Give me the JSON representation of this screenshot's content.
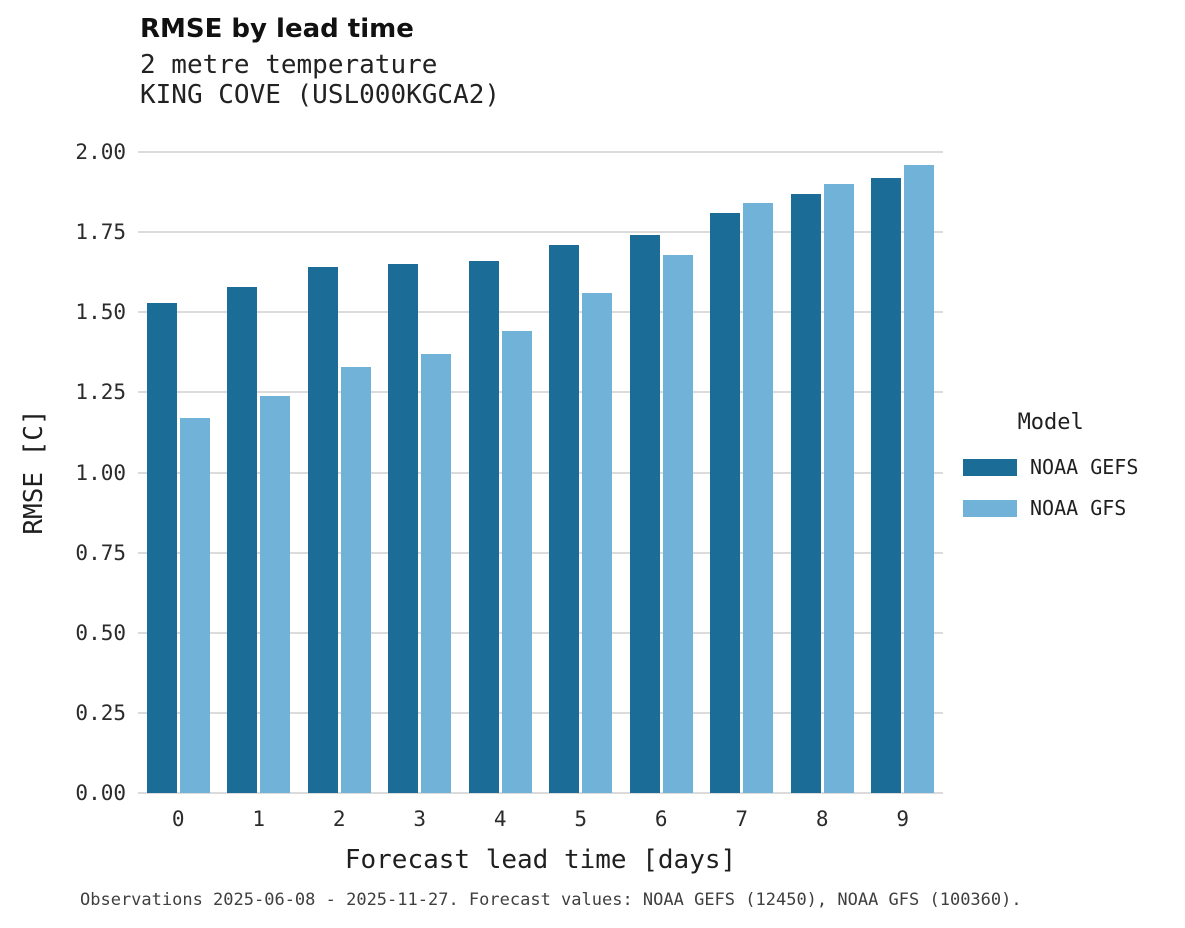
{
  "title": "RMSE by lead time",
  "subtitle_line1": "2 metre temperature",
  "subtitle_line2": "KING COVE (USL000KGCA2)",
  "caption": "Observations 2025-06-08 - 2025-11-27. Forecast values: NOAA GEFS (12450), NOAA GFS (100360).",
  "legend": {
    "title": "Model",
    "entries": [
      {
        "label": "NOAA GEFS",
        "color": "#1b6d98"
      },
      {
        "label": "NOAA GFS",
        "color": "#71b2d8"
      }
    ]
  },
  "chart_data": {
    "type": "bar",
    "title": "RMSE by lead time",
    "subtitle": [
      "2 metre temperature",
      "KING COVE (USL000KGCA2)"
    ],
    "xlabel": "Forecast lead time [days]",
    "ylabel": "RMSE [C]",
    "categories": [
      0,
      1,
      2,
      3,
      4,
      5,
      6,
      7,
      8,
      9
    ],
    "series": [
      {
        "name": "NOAA GEFS",
        "color": "#1b6d98",
        "values": [
          1.53,
          1.58,
          1.64,
          1.65,
          1.66,
          1.71,
          1.74,
          1.81,
          1.87,
          1.92
        ]
      },
      {
        "name": "NOAA GFS",
        "color": "#71b2d8",
        "values": [
          1.17,
          1.24,
          1.33,
          1.37,
          1.44,
          1.56,
          1.68,
          1.84,
          1.9,
          1.96
        ]
      }
    ],
    "ylim": [
      0,
      2.0
    ],
    "yticks": [
      0,
      0.25,
      0.5,
      0.75,
      1.0,
      1.25,
      1.5,
      1.75,
      2.0
    ],
    "grid": true,
    "legend_position": "right",
    "legend_title": "Model"
  }
}
